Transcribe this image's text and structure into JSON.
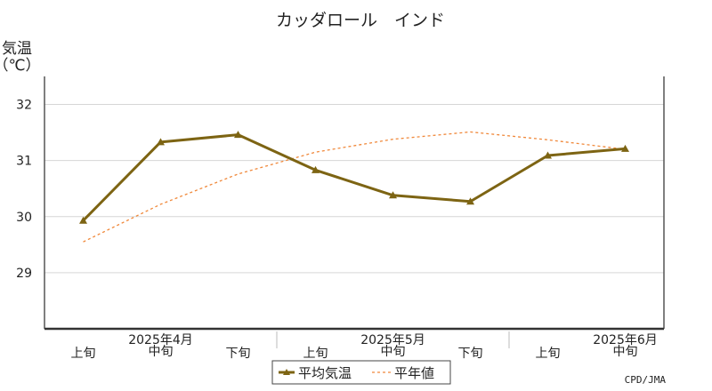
{
  "chart_data": {
    "type": "line",
    "title": "カッダロール　インド",
    "ylabel": "気温",
    "yunit": "（℃）",
    "ylim": [
      28,
      32.5
    ],
    "yticks": [
      29,
      30,
      31,
      32
    ],
    "grid": true,
    "categories": [
      "上旬",
      "中旬",
      "下旬",
      "上旬",
      "中旬",
      "下旬",
      "上旬",
      "中旬"
    ],
    "months": [
      "2025年4月",
      "2025年5月",
      "2025年6月"
    ],
    "series": [
      {
        "name": "平均気温",
        "values": [
          29.93,
          31.33,
          31.46,
          30.83,
          30.38,
          30.27,
          31.09,
          31.21
        ],
        "color": "#7d6413",
        "style": "solid-markers"
      },
      {
        "name": "平年値",
        "values": [
          29.55,
          30.22,
          30.76,
          31.15,
          31.38,
          31.51,
          31.37,
          31.2
        ],
        "color": "#f0883a",
        "style": "dashed"
      }
    ],
    "legend": "bottom-center",
    "credit": "CPD/JMA"
  }
}
